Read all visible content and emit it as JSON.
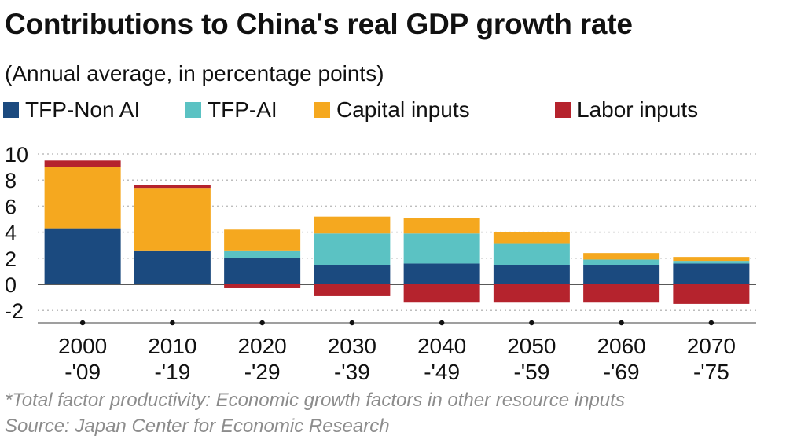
{
  "title": "Contributions to China's real GDP growth rate",
  "subtitle": "(Annual average, in percentage points)",
  "notes": {
    "footnote": "*Total factor productivity: Economic growth factors in other resource inputs",
    "source": "Source: Japan Center for Economic Research"
  },
  "chart_data": {
    "type": "bar",
    "stacked": true,
    "categories": [
      [
        "2000",
        "-'09"
      ],
      [
        "2010",
        "-'19"
      ],
      [
        "2020",
        "-'29"
      ],
      [
        "2030",
        "-'39"
      ],
      [
        "2040",
        "-'49"
      ],
      [
        "2050",
        "-'59"
      ],
      [
        "2060",
        "-'69"
      ],
      [
        "2070",
        "-'75"
      ]
    ],
    "series": [
      {
        "name": "TFP-Non AI",
        "color": "#1b4a7f",
        "values": [
          4.3,
          2.6,
          2.0,
          1.5,
          1.6,
          1.5,
          1.5,
          1.6
        ]
      },
      {
        "name": "TFP-AI",
        "color": "#5bc2c3",
        "values": [
          0.0,
          0.0,
          0.6,
          2.4,
          2.3,
          1.6,
          0.4,
          0.2
        ]
      },
      {
        "name": "Capital inputs",
        "color": "#f5a81f",
        "values": [
          4.7,
          4.8,
          1.6,
          1.3,
          1.2,
          0.9,
          0.5,
          0.3
        ]
      },
      {
        "name": "Labor inputs",
        "color": "#b5232d",
        "values": [
          0.5,
          0.2,
          -0.3,
          -0.9,
          -1.4,
          -1.4,
          -1.4,
          -1.5
        ]
      }
    ],
    "ylim": [
      -3,
      10
    ],
    "yticks": [
      10,
      8,
      6,
      4,
      2,
      0,
      -2
    ],
    "grid": "dotted horizontal",
    "legend": "top"
  }
}
